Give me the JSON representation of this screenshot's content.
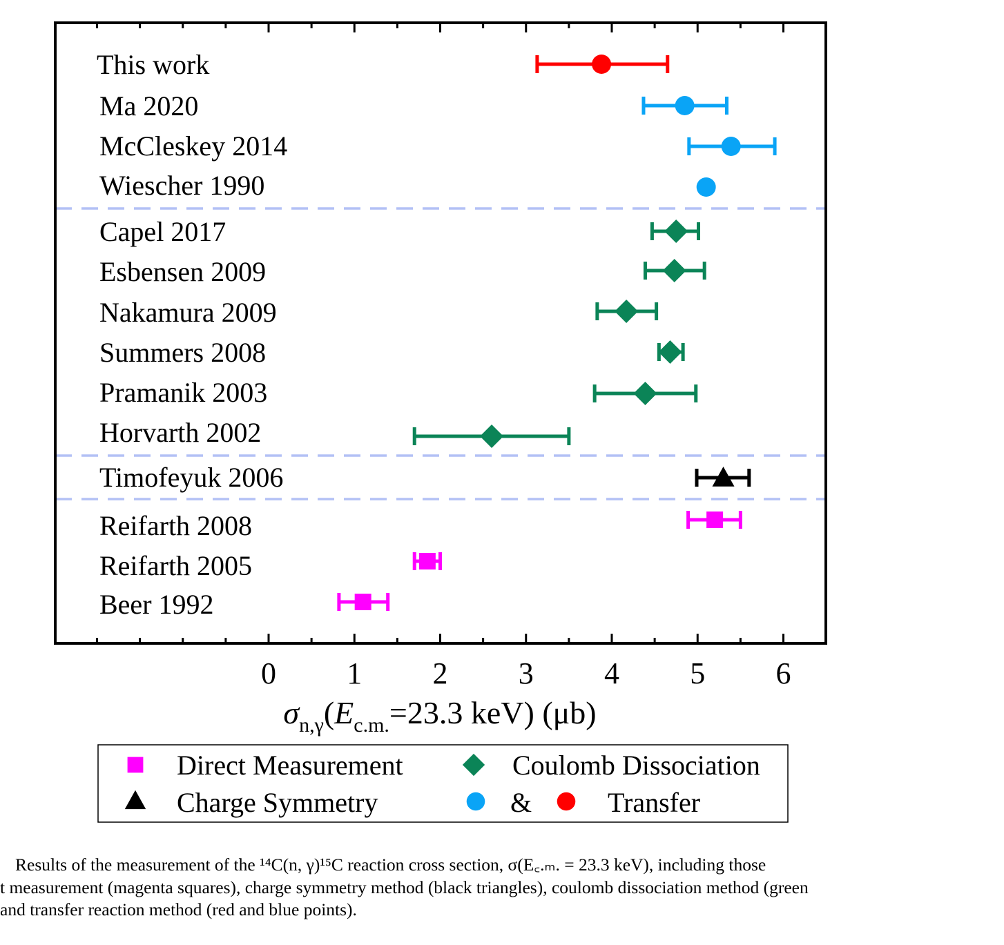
{
  "chart_data": {
    "type": "forest",
    "xlabel": {
      "symbol": "σ",
      "subscript": "n,γ",
      "open": "(",
      "energy_symbol": "E",
      "energy_subscript": "c.m.",
      "rest": "=23.3 keV) (μb)"
    },
    "xlim": [
      -2.5,
      6.5
    ],
    "xticks": [
      0,
      1,
      2,
      3,
      4,
      5,
      6
    ],
    "xtick_labels": [
      "0",
      "1",
      "2",
      "3",
      "4",
      "5",
      "6"
    ],
    "groups": [
      {
        "name": "Transfer",
        "studies": [
          {
            "label": "This work",
            "value": 3.88,
            "err_low": 3.13,
            "err_high": 4.65,
            "marker": "circle",
            "color": "#ff0000"
          },
          {
            "label": "Ma 2020",
            "value": 4.85,
            "err_low": 4.37,
            "err_high": 5.34,
            "marker": "circle",
            "color": "#0aa4f6"
          },
          {
            "label": "McCleskey 2014",
            "value": 5.39,
            "err_low": 4.9,
            "err_high": 5.9,
            "marker": "circle",
            "color": "#0aa4f6"
          },
          {
            "label": "Wiescher 1990",
            "value": 5.1,
            "err_low": null,
            "err_high": null,
            "marker": "circle",
            "color": "#0aa4f6"
          }
        ]
      },
      {
        "name": "Coulomb Dissociation",
        "studies": [
          {
            "label": "Capel 2017",
            "value": 4.75,
            "err_low": 4.47,
            "err_high": 5.01,
            "marker": "diamond",
            "color": "#0b8457"
          },
          {
            "label": "Esbensen 2009",
            "value": 4.73,
            "err_low": 4.39,
            "err_high": 5.08,
            "marker": "diamond",
            "color": "#0b8457"
          },
          {
            "label": "Nakamura 2009",
            "value": 4.17,
            "err_low": 3.83,
            "err_high": 4.52,
            "marker": "diamond",
            "color": "#0b8457"
          },
          {
            "label": "Summers 2008",
            "value": 4.68,
            "err_low": 4.55,
            "err_high": 4.83,
            "marker": "diamond",
            "color": "#0b8457"
          },
          {
            "label": "Pramanik 2003",
            "value": 4.39,
            "err_low": 3.8,
            "err_high": 4.98,
            "marker": "diamond",
            "color": "#0b8457"
          },
          {
            "label": "Horvarth 2002",
            "value": 2.6,
            "err_low": 1.7,
            "err_high": 3.5,
            "marker": "diamond",
            "color": "#0b8457"
          }
        ]
      },
      {
        "name": "Charge Symmetry",
        "studies": [
          {
            "label": "Timofeyuk 2006",
            "value": 5.3,
            "err_low": 4.99,
            "err_high": 5.6,
            "marker": "triangle",
            "color": "#000000"
          }
        ]
      },
      {
        "name": "Direct Measurement",
        "studies": [
          {
            "label": "Reifarth 2008",
            "value": 5.2,
            "err_low": 4.89,
            "err_high": 5.5,
            "marker": "square",
            "color": "#ff00ff"
          },
          {
            "label": "Reifarth 2005",
            "value": 1.85,
            "err_low": 1.7,
            "err_high": 2.0,
            "marker": "square",
            "color": "#ff00ff"
          },
          {
            "label": "Beer 1992",
            "value": 1.1,
            "err_low": 0.82,
            "err_high": 1.39,
            "marker": "square",
            "color": "#ff00ff"
          }
        ]
      }
    ],
    "separator_color": "#b3c1f5",
    "legend": {
      "position": "bottom",
      "entries": [
        {
          "marker": "square",
          "color": "#ff00ff",
          "label": "Direct Measurement"
        },
        {
          "marker": "diamond",
          "color": "#0b8457",
          "label": "Coulomb Dissociation"
        },
        {
          "marker": "triangle",
          "color": "#000000",
          "label": "Charge Symmetry"
        },
        {
          "marker": "circle",
          "color": "#0aa4f6",
          "label": ""
        },
        {
          "marker": "text",
          "color": "#000000",
          "label": "&"
        },
        {
          "marker": "circle",
          "color": "#ff0000",
          "label": ""
        },
        {
          "marker": "text",
          "color": "#000000",
          "label": "Transfer"
        }
      ]
    }
  },
  "caption": {
    "lines": [
      "Results of the measurement of the ¹⁴C(n, γ)¹⁵C reaction cross section, σ(E꜀.ₘ. = 23.3 keV), including those",
      "t measurement (magenta squares), charge symmetry method (black triangles), coulomb dissociation method (green",
      "and transfer reaction method (red and blue points)."
    ]
  }
}
